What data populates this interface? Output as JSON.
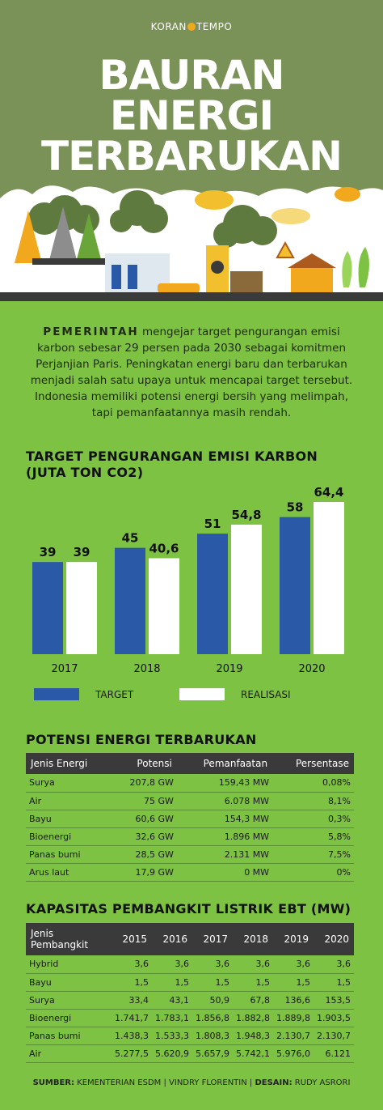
{
  "brand": {
    "left": "KORAN",
    "right": "TEMPO"
  },
  "title": {
    "line1": "BAURAN",
    "line2": "ENERGI",
    "line3": "TERBARUKAN"
  },
  "intro": {
    "lead": "PEMERINTAH",
    "body": " mengejar target pengurangan emisi karbon sebesar 29 persen pada 2030 sebagai komitmen Perjanjian Paris. Peningkatan energi baru dan terbarukan menjadi salah satu upaya untuk mencapai target tersebut. Indonesia memiliki potensi energi bersih yang melimpah, tapi pemanfaatannya masih rendah."
  },
  "chart_data": {
    "type": "bar",
    "title_line1": "TARGET PENGURANGAN EMISI KARBON",
    "title_line2": "(JUTA TON CO2)",
    "categories": [
      "2017",
      "2018",
      "2019",
      "2020"
    ],
    "series": [
      {
        "name": "TARGET",
        "values": [
          39,
          45,
          51,
          58
        ],
        "labels": [
          "39",
          "45",
          "51",
          "58"
        ],
        "color": "#2a5aa7"
      },
      {
        "name": "REALISASI",
        "values": [
          39,
          40.6,
          54.8,
          64.4
        ],
        "labels": [
          "39",
          "40,6",
          "54,8",
          "64,4"
        ],
        "color": "#ffffff"
      }
    ],
    "ylim": [
      0,
      64.4
    ],
    "grid": false,
    "legend": "bottom"
  },
  "potensi": {
    "title": "POTENSI ENERGI TERBARUKAN",
    "headers": [
      "Jenis Energi",
      "Potensi",
      "Pemanfaatan",
      "Persentase"
    ],
    "rows": [
      [
        "Surya",
        "207,8 GW",
        "159,43 MW",
        "0,08%"
      ],
      [
        "Air",
        "75 GW",
        "6.078 MW",
        "8,1%"
      ],
      [
        "Bayu",
        "60,6 GW",
        "154,3 MW",
        "0,3%"
      ],
      [
        "Bioenergi",
        "32,6 GW",
        "1.896 MW",
        "5,8%"
      ],
      [
        "Panas bumi",
        "28,5 GW",
        "2.131 MW",
        "7,5%"
      ],
      [
        "Arus laut",
        "17,9 GW",
        "0 MW",
        "0%"
      ]
    ]
  },
  "kapasitas": {
    "title": "KAPASITAS PEMBANGKIT LISTRIK EBT (MW)",
    "headers": [
      "Jenis Pembangkit",
      "2015",
      "2016",
      "2017",
      "2018",
      "2019",
      "2020"
    ],
    "rows": [
      [
        "Hybrid",
        "3,6",
        "3,6",
        "3,6",
        "3,6",
        "3,6",
        "3,6"
      ],
      [
        "Bayu",
        "1,5",
        "1,5",
        "1,5",
        "1,5",
        "1,5",
        "1,5"
      ],
      [
        "Surya",
        "33,4",
        "43,1",
        "50,9",
        "67,8",
        "136,6",
        "153,5"
      ],
      [
        "Bioenergi",
        "1.741,7",
        "1.783,1",
        "1.856,8",
        "1.882,8",
        "1.889,8",
        "1.903,5"
      ],
      [
        "Panas bumi",
        "1.438,3",
        "1.533,3",
        "1.808,3",
        "1.948,3",
        "2.130,7",
        "2.130,7"
      ],
      [
        "Air",
        "5.277,5",
        "5.620,9",
        "5.657,9",
        "5.742,1",
        "5.976,0",
        "6.121"
      ]
    ]
  },
  "source": {
    "label1": "SUMBER:",
    "text1": " KEMENTERIAN ESDM | VINDRY FLORENTIN | ",
    "label2": "DESAIN:",
    "text2": " RUDY ASRORI"
  }
}
